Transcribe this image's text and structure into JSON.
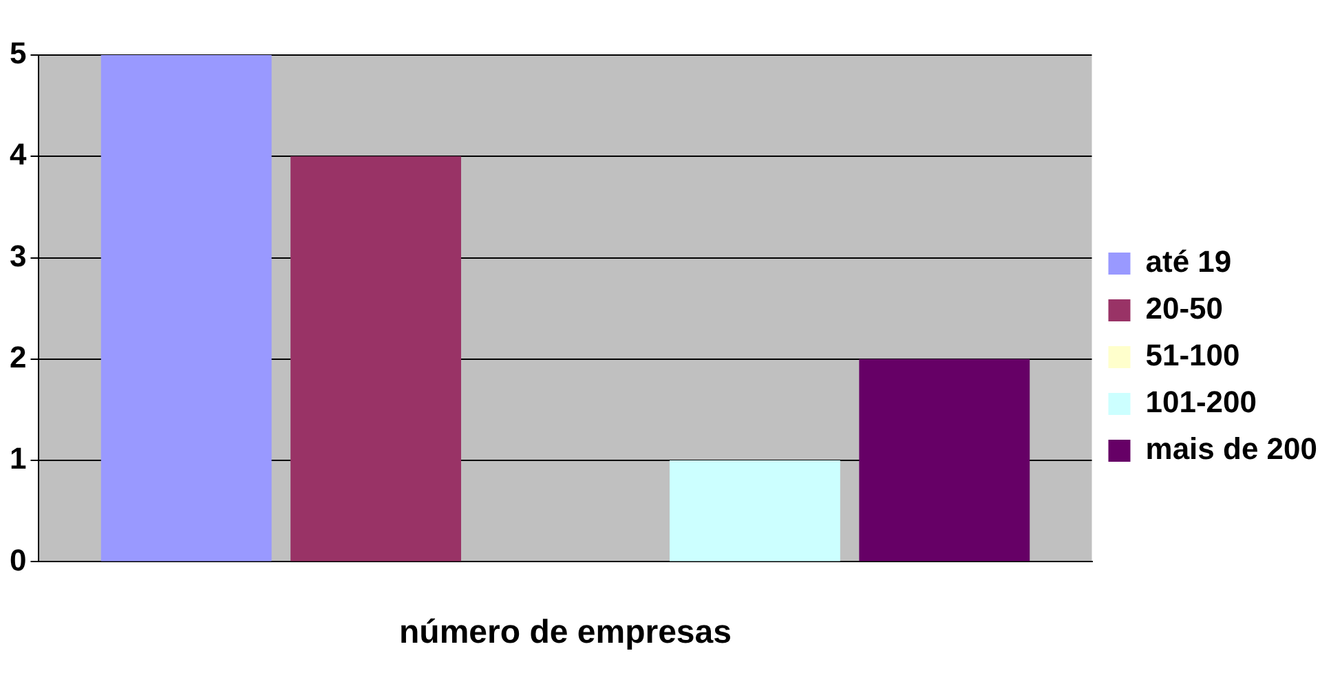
{
  "chart_data": {
    "type": "bar",
    "xlabel": "número de empresas",
    "categories": [
      null
    ],
    "series": [
      {
        "name": "até 19",
        "color": "#9999ff",
        "values": [
          5
        ]
      },
      {
        "name": "20-50",
        "color": "#993366",
        "values": [
          4
        ]
      },
      {
        "name": "51-100",
        "color": "#ffffcc",
        "values": [
          0
        ]
      },
      {
        "name": "101-200",
        "color": "#ccffff",
        "values": [
          1
        ]
      },
      {
        "name": "mais de 200",
        "color": "#660066",
        "values": [
          2
        ]
      }
    ],
    "ylim": [
      0,
      5
    ],
    "yticks": [
      0,
      1,
      2,
      3,
      4,
      5
    ],
    "grid": "y",
    "legend": "right"
  }
}
